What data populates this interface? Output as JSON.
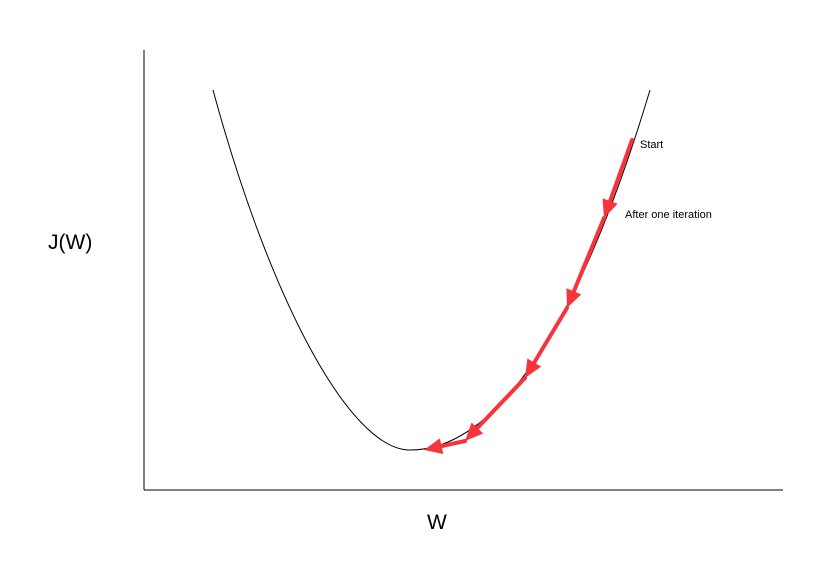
{
  "axes": {
    "y_label": "J(W)",
    "x_label": "W"
  },
  "annotations": {
    "start": "Start",
    "after_one": "After one iteration"
  },
  "colors": {
    "curve": "#000000",
    "axis": "#000000",
    "arrow": "#f7333b"
  }
}
